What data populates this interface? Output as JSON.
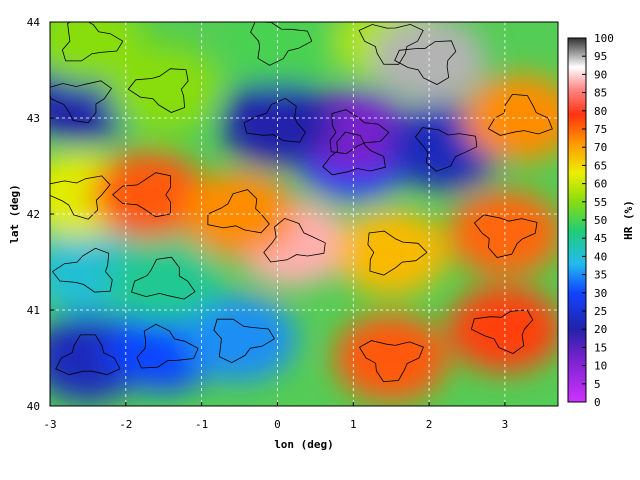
{
  "chart_data": {
    "type": "heatmap",
    "title": "",
    "xlabel": "lon (deg)",
    "ylabel": "lat (deg)",
    "colorbar_label": "HR (%)",
    "xlim": [
      -3,
      3.7
    ],
    "ylim": [
      40,
      44
    ],
    "x_ticks": [
      "-3",
      "-2",
      "-1",
      "0",
      "1",
      "2",
      "3"
    ],
    "y_ticks": [
      "40",
      "41",
      "42",
      "43",
      "44"
    ],
    "colorbar_range": [
      0,
      100
    ],
    "colorbar_ticks": [
      "0",
      "5",
      "10",
      "15",
      "20",
      "25",
      "30",
      "35",
      "40",
      "45",
      "50",
      "55",
      "60",
      "65",
      "70",
      "75",
      "80",
      "85",
      "90",
      "95",
      "100"
    ],
    "grid": true,
    "contour_lines": true,
    "colormap": [
      "#cc33ff",
      "#2222aa",
      "#1144ff",
      "#22bbee",
      "#22cc77",
      "#88dd11",
      "#eeee00",
      "#ff9900",
      "#ff3311",
      "#ff8888",
      "#ffffff",
      "#333333"
    ],
    "regions": [
      {
        "lon": -2.5,
        "lat": 40.5,
        "value": 22
      },
      {
        "lon": -1.5,
        "lat": 40.6,
        "value": 30
      },
      {
        "lon": -0.5,
        "lat": 40.7,
        "value": 35
      },
      {
        "lon": 1.5,
        "lat": 40.5,
        "value": 76
      },
      {
        "lon": 3.0,
        "lat": 40.8,
        "value": 78
      },
      {
        "lon": -2.5,
        "lat": 41.4,
        "value": 40
      },
      {
        "lon": -1.5,
        "lat": 41.3,
        "value": 45
      },
      {
        "lon": 0.2,
        "lat": 41.7,
        "value": 88
      },
      {
        "lon": 1.5,
        "lat": 41.6,
        "value": 68
      },
      {
        "lon": 3.0,
        "lat": 41.8,
        "value": 75
      },
      {
        "lon": -2.6,
        "lat": 42.2,
        "value": 62
      },
      {
        "lon": -1.7,
        "lat": 42.2,
        "value": 76
      },
      {
        "lon": -0.5,
        "lat": 42.0,
        "value": 72
      },
      {
        "lon": 1.0,
        "lat": 42.6,
        "value": 30
      },
      {
        "lon": 1.0,
        "lat": 42.85,
        "value": 12
      },
      {
        "lon": 2.2,
        "lat": 42.7,
        "value": 22
      },
      {
        "lon": -2.6,
        "lat": 43.2,
        "value": 20
      },
      {
        "lon": -1.5,
        "lat": 43.3,
        "value": 55
      },
      {
        "lon": 0.0,
        "lat": 42.95,
        "value": 20
      },
      {
        "lon": 3.2,
        "lat": 43.0,
        "value": 72
      },
      {
        "lon": -2.5,
        "lat": 43.8,
        "value": 55
      },
      {
        "lon": 0.0,
        "lat": 43.8,
        "value": 50
      },
      {
        "lon": 1.5,
        "lat": 43.8,
        "value": 58
      },
      {
        "lon": 2.0,
        "lat": 43.6,
        "value": 95
      }
    ]
  }
}
